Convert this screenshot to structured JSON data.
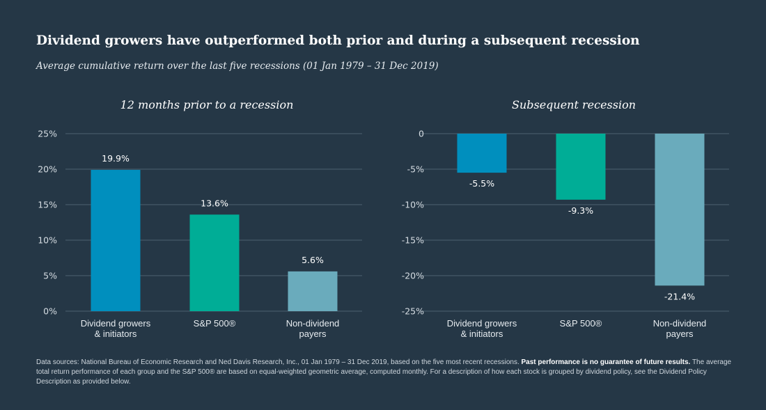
{
  "title": "Dividend growers have outperformed both prior and during a subsequent recession",
  "subtitle": "Average cumulative return over the last five recessions (01 Jan 1979 – 31 Dec 2019)",
  "colors": {
    "background": "#253746",
    "dividend_growers": "#008fbe",
    "sp500": "#00ad96",
    "non_dividend": "#6aabbc",
    "gridline": "#4d6170"
  },
  "chart_data": [
    {
      "type": "bar",
      "title": "12 months prior to a recession",
      "categories": [
        [
          "Dividend growers",
          "& initiators"
        ],
        [
          "S&P 500®"
        ],
        [
          "Non-dividend",
          "payers"
        ]
      ],
      "values": [
        19.9,
        13.6,
        5.6
      ],
      "value_labels": [
        "19.9%",
        "13.6%",
        "5.6%"
      ],
      "yticks": [
        0,
        5,
        10,
        15,
        20,
        25
      ],
      "ytick_labels": [
        "0%",
        "5%",
        "10%",
        "15%",
        "20%",
        "25%"
      ],
      "ylim": [
        0,
        25
      ],
      "xlabel": "",
      "ylabel": "",
      "grid": true
    },
    {
      "type": "bar",
      "title": "Subsequent recession",
      "categories": [
        [
          "Dividend growers",
          "& initiators"
        ],
        [
          "S&P 500®"
        ],
        [
          "Non-dividend",
          "payers"
        ]
      ],
      "values": [
        -5.5,
        -9.3,
        -21.4
      ],
      "value_labels": [
        "-5.5%",
        "-9.3%",
        "-21.4%"
      ],
      "yticks": [
        0,
        -5,
        -10,
        -15,
        -20,
        -25
      ],
      "ytick_labels": [
        "0",
        "-5%",
        "-10%",
        "-15%",
        "-20%",
        "-25%"
      ],
      "ylim": [
        -25,
        0
      ],
      "xlabel": "",
      "ylabel": "",
      "grid": true
    }
  ],
  "footnote": {
    "text": "Data sources: National Bureau of Economic Research and Ned Davis Research, Inc., 01 Jan 1979 – 31 Dec 2019, based on the five most recent recessions. ",
    "bold": "Past performance is no guarantee of future results.",
    "text2": " The average total return performance of each group and the S&P 500® are based on equal-weighted geometric average, computed monthly. For a description of how each stock is grouped by dividend policy, see the Dividend Policy Description as provided below."
  }
}
